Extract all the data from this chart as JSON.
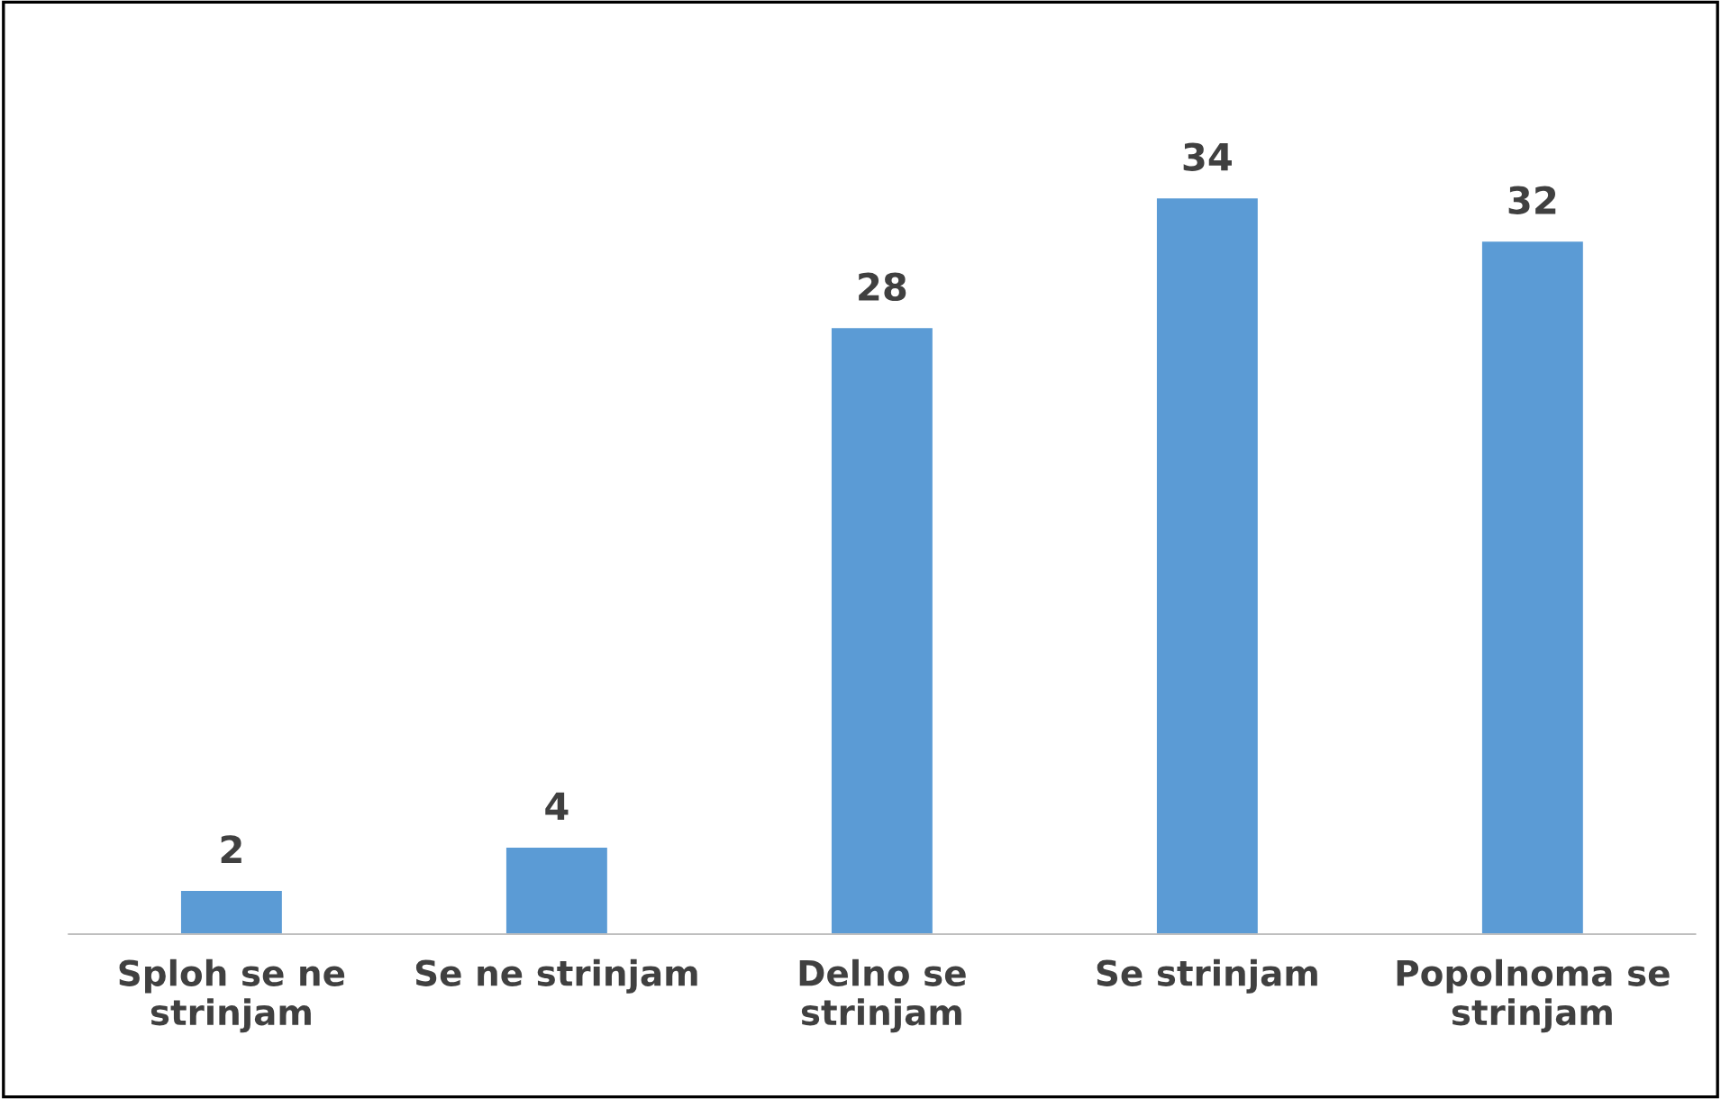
{
  "chart_data": {
    "type": "bar",
    "categories": [
      "Sploh se ne\nstrinjam",
      "Se ne strinjam",
      "Delno se\nstrinjam",
      "Se strinjam",
      "Popolnoma se\nstrinjam"
    ],
    "values": [
      2,
      4,
      28,
      34,
      32
    ],
    "color": "#5b9bd5",
    "data_labels": true,
    "grid": false,
    "legend": false
  }
}
